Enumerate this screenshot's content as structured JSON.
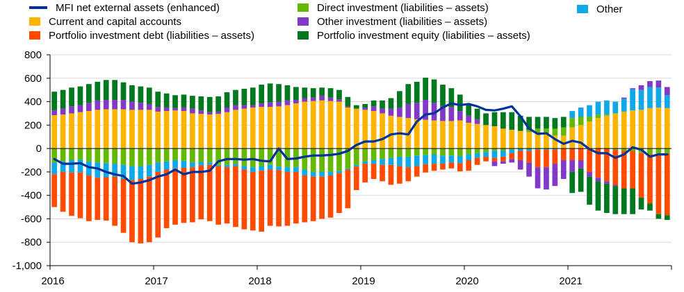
{
  "chart_data": {
    "type": "bar",
    "subtype": "stacked-bar-with-line",
    "title": "",
    "xlabel": "",
    "ylabel": "",
    "ylim": [
      -1000,
      800
    ],
    "yticks": [
      800,
      600,
      400,
      200,
      0,
      -200,
      -400,
      -600,
      -800,
      -1000
    ],
    "ytick_labels": [
      "800",
      "600",
      "400",
      "200",
      "0",
      "-200",
      "-400",
      "-600",
      "-800",
      "-1,000"
    ],
    "xtick_labels": [
      "2016",
      "2017",
      "2018",
      "2019",
      "2020",
      "2021"
    ],
    "x_start": "2016-01",
    "x_end": "2021-08",
    "frequency": "monthly",
    "grid": "horizontal",
    "legend_position": "top",
    "series": [
      {
        "name": "Current and capital accounts",
        "color": "#FFB400",
        "values": [
          285,
          290,
          300,
          310,
          320,
          330,
          335,
          335,
          335,
          330,
          330,
          330,
          315,
          320,
          325,
          320,
          300,
          295,
          290,
          295,
          310,
          330,
          340,
          350,
          355,
          355,
          360,
          370,
          385,
          400,
          405,
          410,
          405,
          400,
          350,
          340,
          330,
          320,
          300,
          280,
          270,
          260,
          250,
          245,
          240,
          235,
          235,
          240,
          220,
          210,
          200,
          190,
          170,
          160,
          150,
          140,
          130,
          120,
          110,
          110,
          180,
          200,
          230,
          260,
          280,
          300,
          315,
          325,
          330,
          345,
          350,
          345
        ]
      },
      {
        "name": "Direct investment (liabilities – assets)",
        "color": "#65B800",
        "values": [
          -120,
          -110,
          -100,
          -95,
          -110,
          -120,
          -125,
          -130,
          -140,
          -150,
          -150,
          -140,
          -120,
          -110,
          -100,
          -105,
          -120,
          -115,
          -120,
          -140,
          -140,
          -130,
          -150,
          -160,
          -150,
          -140,
          -155,
          -160,
          -160,
          -180,
          -200,
          -200,
          -200,
          -190,
          -170,
          -140,
          -110,
          -100,
          -90,
          -80,
          -70,
          -70,
          -60,
          -55,
          -50,
          -60,
          -60,
          -65,
          -50,
          -40,
          -30,
          -20,
          -20,
          -10,
          0,
          20,
          40,
          50,
          60,
          70,
          80,
          70,
          40,
          30,
          10,
          -10,
          -20,
          -20,
          -40,
          -50,
          -60,
          -40
        ]
      },
      {
        "name": "Other",
        "color": "#10A9E8",
        "values": [
          -100,
          -90,
          -105,
          -110,
          -120,
          -130,
          -120,
          -110,
          -120,
          -120,
          -110,
          -100,
          -80,
          -70,
          -70,
          -60,
          -40,
          -30,
          -20,
          -10,
          -20,
          -20,
          -30,
          -40,
          -40,
          -40,
          -30,
          -40,
          -40,
          -50,
          -40,
          -40,
          -30,
          -20,
          -10,
          -15,
          -20,
          -30,
          -50,
          -60,
          -80,
          -90,
          -90,
          -80,
          -80,
          -70,
          -60,
          -60,
          -50,
          -40,
          -40,
          -60,
          -50,
          -30,
          -20,
          -20,
          -10,
          -10,
          -10,
          0,
          60,
          80,
          100,
          110,
          120,
          100,
          110,
          180,
          170,
          180,
          170,
          110
        ]
      },
      {
        "name": "Portfolio investment debt (liabilities – assets)",
        "color": "#FF4B00",
        "values": [
          -280,
          -340,
          -370,
          -390,
          -390,
          -360,
          -370,
          -420,
          -460,
          -530,
          -550,
          -560,
          -560,
          -500,
          -480,
          -470,
          -470,
          -460,
          -480,
          -500,
          -480,
          -520,
          -510,
          -500,
          -520,
          -480,
          -480,
          -460,
          -440,
          -400,
          -380,
          -360,
          -360,
          -340,
          -330,
          -200,
          -160,
          -130,
          -140,
          -170,
          -150,
          -120,
          -90,
          -70,
          -60,
          -50,
          -50,
          -70,
          -90,
          -60,
          -40,
          -30,
          -40,
          -50,
          -80,
          -100,
          -150,
          -150,
          -120,
          -100,
          -100,
          -100,
          -200,
          -250,
          -280,
          -300,
          -320,
          -320,
          -380,
          -420,
          -500,
          -530
        ]
      },
      {
        "name": "Other investment (liabilities – assets)",
        "color": "#8139C6",
        "values": [
          40,
          50,
          60,
          60,
          70,
          80,
          80,
          80,
          80,
          70,
          60,
          50,
          40,
          30,
          20,
          30,
          40,
          30,
          20,
          20,
          40,
          40,
          30,
          20,
          30,
          40,
          40,
          40,
          30,
          30,
          30,
          40,
          30,
          20,
          10,
          0,
          20,
          40,
          40,
          60,
          80,
          120,
          140,
          170,
          150,
          130,
          120,
          80,
          60,
          40,
          0,
          -40,
          -20,
          -30,
          -80,
          -120,
          -180,
          -190,
          -190,
          -160,
          -100,
          -70,
          -40,
          -30,
          -20,
          -10,
          10,
          10,
          40,
          50,
          60,
          70
        ]
      },
      {
        "name": "Portfolio investment equity (liabilities – assets)",
        "color": "#00781F",
        "values": [
          160,
          160,
          160,
          160,
          160,
          160,
          170,
          170,
          150,
          140,
          140,
          140,
          130,
          120,
          110,
          110,
          110,
          120,
          130,
          130,
          130,
          130,
          140,
          150,
          160,
          160,
          150,
          130,
          110,
          90,
          80,
          70,
          80,
          80,
          80,
          30,
          30,
          50,
          70,
          90,
          140,
          170,
          180,
          190,
          200,
          180,
          160,
          140,
          100,
          90,
          100,
          120,
          140,
          150,
          130,
          110,
          100,
          100,
          90,
          90,
          -180,
          -200,
          -240,
          -250,
          -250,
          -240,
          -220,
          -220,
          -100,
          -60,
          -40,
          -40
        ]
      }
    ],
    "line": {
      "name": "MFI net external assets (enhanced)",
      "color": "#003299",
      "values": [
        -90,
        -130,
        -130,
        -125,
        -160,
        -170,
        -200,
        -220,
        -235,
        -300,
        -290,
        -270,
        -240,
        -220,
        -180,
        -220,
        -200,
        -200,
        -190,
        -110,
        -90,
        -90,
        -95,
        -90,
        -105,
        -110,
        0,
        -90,
        -85,
        -70,
        -60,
        -60,
        -55,
        -45,
        -20,
        30,
        60,
        60,
        80,
        120,
        130,
        120,
        230,
        290,
        300,
        350,
        385,
        370,
        380,
        360,
        330,
        325,
        340,
        360,
        275,
        170,
        125,
        130,
        80,
        40,
        65,
        50,
        -5,
        -40,
        -40,
        -80,
        -50,
        10,
        -10,
        -70,
        -50,
        -50
      ]
    }
  },
  "legend": {
    "items": [
      {
        "label": "MFI net external assets (enhanced)",
        "kind": "line",
        "color": "#003299"
      },
      {
        "label": "Current and capital accounts",
        "kind": "box",
        "color": "#FFB400"
      },
      {
        "label": "Portfolio investment debt (liabilities – assets)",
        "kind": "box",
        "color": "#FF4B00"
      },
      {
        "label": "Direct investment (liabilities – assets)",
        "kind": "box",
        "color": "#65B800"
      },
      {
        "label": "Other investment (liabilities – assets)",
        "kind": "box",
        "color": "#8139C6"
      },
      {
        "label": "Portfolio investment equity (liabilities – assets)",
        "kind": "box",
        "color": "#00781F"
      },
      {
        "label": "Other",
        "kind": "box",
        "color": "#10A9E8"
      }
    ]
  }
}
